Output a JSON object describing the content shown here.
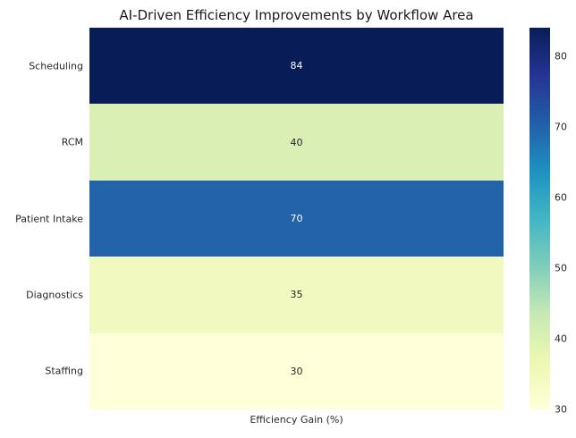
{
  "title": "AI-Driven Efficiency Improvements by Workflow Area",
  "chart_data": {
    "type": "heatmap",
    "title": "AI-Driven Efficiency Improvements by Workflow Area",
    "xlabel": "Efficiency Gain (%)",
    "ylabel": "",
    "categories": [
      "Scheduling",
      "RCM",
      "Patient Intake",
      "Diagnostics",
      "Staffing"
    ],
    "values": [
      84,
      40,
      70,
      35,
      30
    ],
    "vmin": 30,
    "vmax": 84,
    "colormap": "YlGnBu",
    "annotations_shown": true,
    "grid": false,
    "legend_position": "right-colorbar",
    "rows": [
      {
        "label": "Scheduling",
        "value": "84",
        "color": "#081d58",
        "text_color": "#ffffff"
      },
      {
        "label": "RCM",
        "value": "40",
        "color": "#d9efb3",
        "text_color": "#262626"
      },
      {
        "label": "Patient Intake",
        "value": "70",
        "color": "#2263a9",
        "text_color": "#ffffff"
      },
      {
        "label": "Diagnostics",
        "value": "35",
        "color": "#f1f8c0",
        "text_color": "#262626"
      },
      {
        "label": "Staffing",
        "value": "30",
        "color": "#ffffd9",
        "text_color": "#262626"
      }
    ],
    "colorbar": {
      "ticks": [
        {
          "label": "80",
          "top": "7.41%"
        },
        {
          "label": "70",
          "top": "25.93%"
        },
        {
          "label": "60",
          "top": "44.44%"
        },
        {
          "label": "50",
          "top": "62.96%"
        },
        {
          "label": "40",
          "top": "81.48%"
        },
        {
          "label": "30",
          "top": "100%"
        }
      ],
      "gradient_stops": [
        "#081d58 0%",
        "#253494 12.5%",
        "#225ea8 25%",
        "#1d91c0 37.5%",
        "#41b6c4 50%",
        "#7fcdbb 62.5%",
        "#c7e9b4 75%",
        "#edf8b1 87.5%",
        "#ffffd9 100%"
      ]
    }
  }
}
